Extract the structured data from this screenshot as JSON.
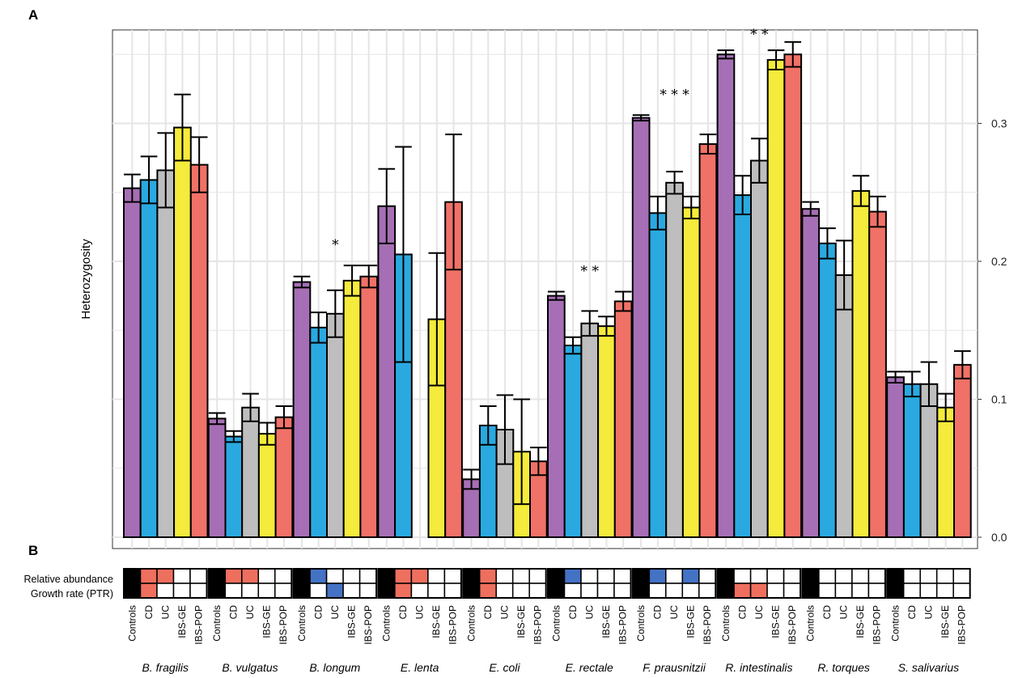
{
  "panels": {
    "a": "A",
    "b": "B"
  },
  "colors": {
    "Controls": "#A66FB5",
    "CD": "#2AA9E0",
    "UC": "#BEBEBE",
    "IBS-GE": "#F5EB3C",
    "IBS-POP": "#F07167",
    "matrix_black": "#000000",
    "matrix_red": "#EF6F5E",
    "matrix_blue": "#4472C4",
    "grid": "#E5E5E5"
  },
  "chart_data": {
    "type": "bar",
    "ylabel": "Heterozygosity",
    "ylim": [
      0,
      0.36
    ],
    "y_ticks": [
      0.0,
      0.1,
      0.2,
      0.3
    ],
    "y_tick_labels": [
      "0.0",
      "0.1",
      "0.2",
      "0.3"
    ],
    "y_axis_side": "right",
    "grid": true,
    "conditions": [
      "Controls",
      "CD",
      "UC",
      "IBS-GE",
      "IBS-POP"
    ],
    "species": [
      "B. fragilis",
      "B. vulgatus",
      "B. longum",
      "E. lenta",
      "E. coli",
      "E. rectale",
      "F. prausnitzii",
      "R. intestinalis",
      "R. torques",
      "S. salivarius"
    ],
    "values": [
      [
        0.253,
        0.259,
        0.266,
        0.297,
        0.27
      ],
      [
        0.086,
        0.073,
        0.094,
        0.075,
        0.087
      ],
      [
        0.185,
        0.152,
        0.162,
        0.186,
        0.189
      ],
      [
        0.24,
        0.205,
        0.0,
        0.158,
        0.243
      ],
      [
        0.042,
        0.081,
        0.078,
        0.062,
        0.055
      ],
      [
        0.175,
        0.139,
        0.155,
        0.153,
        0.171
      ],
      [
        0.304,
        0.235,
        0.257,
        0.239,
        0.285
      ],
      [
        0.35,
        0.248,
        0.273,
        0.346,
        0.35
      ],
      [
        0.238,
        0.213,
        0.19,
        0.251,
        0.236
      ],
      [
        0.116,
        0.111,
        0.111,
        0.094,
        0.125
      ]
    ],
    "errors": [
      [
        0.01,
        0.017,
        0.027,
        0.024,
        0.02
      ],
      [
        0.004,
        0.004,
        0.01,
        0.008,
        0.008
      ],
      [
        0.004,
        0.011,
        0.017,
        0.011,
        0.008
      ],
      [
        0.027,
        0.078,
        0.0,
        0.048,
        0.049
      ],
      [
        0.007,
        0.014,
        0.025,
        0.038,
        0.01
      ],
      [
        0.003,
        0.006,
        0.009,
        0.007,
        0.007
      ],
      [
        0.002,
        0.012,
        0.008,
        0.008,
        0.007
      ],
      [
        0.003,
        0.014,
        0.016,
        0.007,
        0.009
      ],
      [
        0.005,
        0.011,
        0.025,
        0.011,
        0.011
      ],
      [
        0.004,
        0.009,
        0.016,
        0.01,
        0.01
      ]
    ],
    "significance": [
      "",
      "",
      "*",
      "",
      "",
      "* *",
      "* * *",
      "* *",
      "",
      ""
    ]
  },
  "matrix": {
    "row_labels": [
      "Relative abundance",
      "Growth rate (PTR)"
    ],
    "cells": [
      [
        [
          "black",
          "red",
          "red",
          "white",
          "white"
        ],
        [
          "black",
          "red",
          "white",
          "white",
          "white"
        ]
      ],
      [
        [
          "black",
          "red",
          "red",
          "white",
          "white"
        ],
        [
          "black",
          "white",
          "white",
          "white",
          "white"
        ]
      ],
      [
        [
          "black",
          "blue",
          "white",
          "white",
          "white"
        ],
        [
          "black",
          "white",
          "blue",
          "white",
          "white"
        ]
      ],
      [
        [
          "black",
          "red",
          "red",
          "white",
          "white"
        ],
        [
          "black",
          "red",
          "white",
          "white",
          "white"
        ]
      ],
      [
        [
          "black",
          "red",
          "white",
          "white",
          "white"
        ],
        [
          "black",
          "red",
          "white",
          "white",
          "white"
        ]
      ],
      [
        [
          "black",
          "blue",
          "white",
          "white",
          "white"
        ],
        [
          "black",
          "white",
          "white",
          "white",
          "white"
        ]
      ],
      [
        [
          "black",
          "blue",
          "white",
          "blue",
          "white"
        ],
        [
          "black",
          "white",
          "white",
          "white",
          "white"
        ]
      ],
      [
        [
          "black",
          "white",
          "white",
          "white",
          "white"
        ],
        [
          "black",
          "red",
          "red",
          "white",
          "white"
        ]
      ],
      [
        [
          "black",
          "white",
          "white",
          "white",
          "white"
        ],
        [
          "black",
          "white",
          "white",
          "white",
          "white"
        ]
      ],
      [
        [
          "black",
          "white",
          "white",
          "white",
          "white"
        ],
        [
          "black",
          "white",
          "white",
          "white",
          "white"
        ]
      ]
    ]
  }
}
